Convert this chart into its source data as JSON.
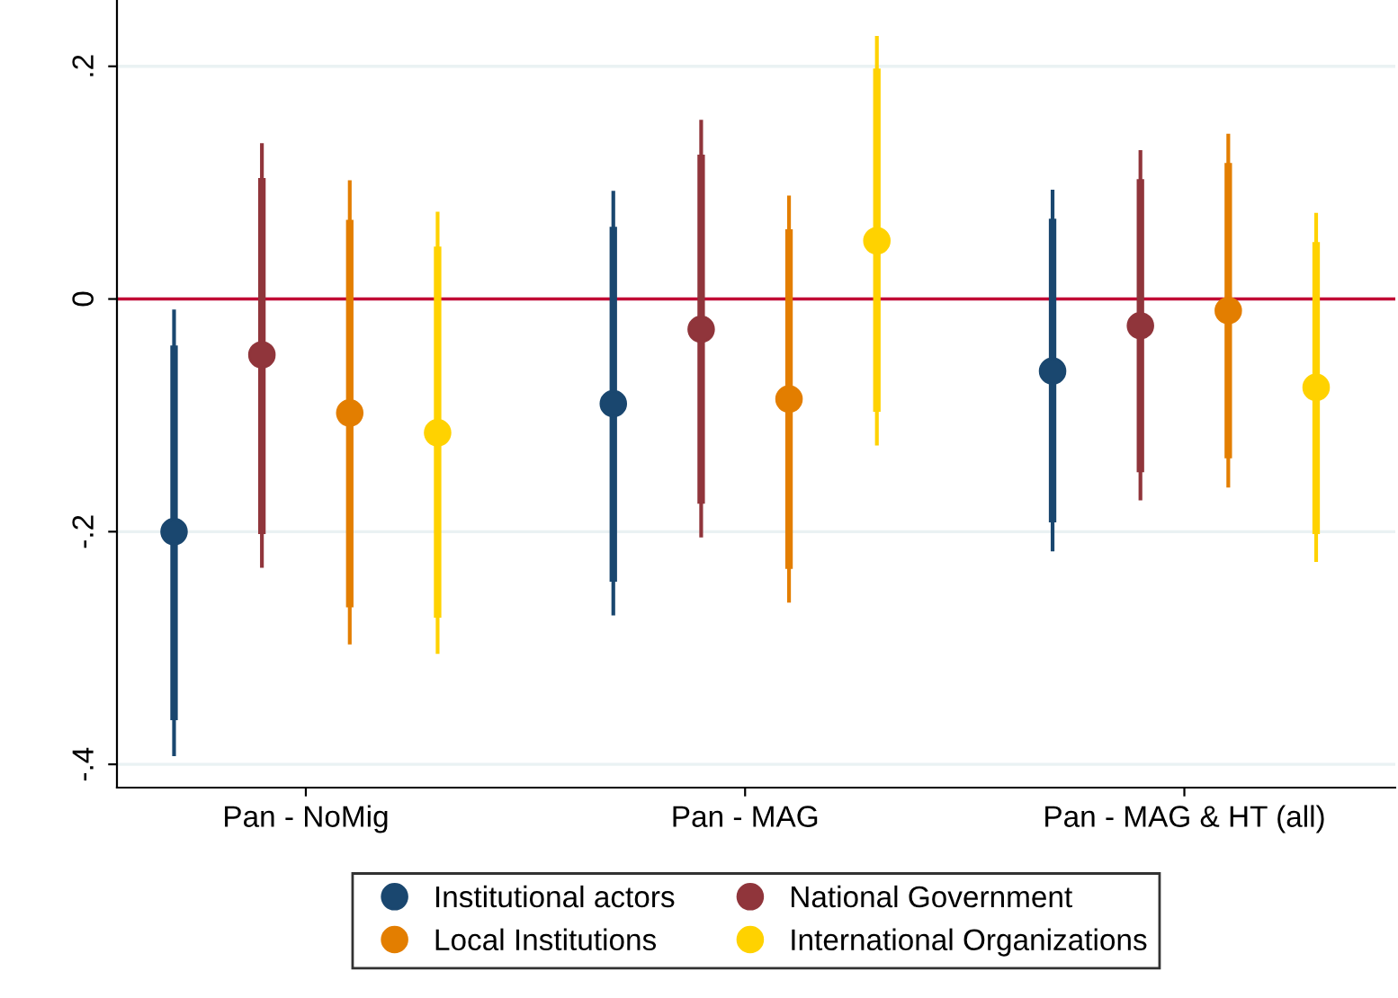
{
  "chart_data": {
    "type": "scatter",
    "categories": [
      "Pan - NoMig",
      "Pan - MAG",
      "Pan - MAG & HT (all)"
    ],
    "ylim": [
      -0.42,
      0.257
    ],
    "yticks": [
      {
        "value": -0.4,
        "label": "-.4"
      },
      {
        "value": -0.2,
        "label": "-.2"
      },
      {
        "value": 0,
        "label": "0"
      },
      {
        "value": 0.2,
        "label": ".2"
      }
    ],
    "grid": "y",
    "marker": "circle",
    "legend": "bottom",
    "ref_lines": [
      {
        "axis": "y",
        "value": 0,
        "color": "#c10534"
      }
    ],
    "series": [
      {
        "name": "Institutional actors",
        "color": "#1a476f",
        "values": [
          -0.2,
          -0.09,
          -0.062
        ],
        "errors": [
          [
            -0.393,
            -0.009
          ],
          [
            -0.272,
            0.093
          ],
          [
            -0.217,
            0.094
          ]
        ]
      },
      {
        "name": "National Government",
        "color": "#90353b",
        "values": [
          -0.048,
          -0.026,
          -0.023
        ],
        "errors": [
          [
            -0.231,
            0.134
          ],
          [
            -0.205,
            0.154
          ],
          [
            -0.173,
            0.128
          ]
        ]
      },
      {
        "name": "Local Institutions",
        "color": "#e37e00",
        "values": [
          -0.098,
          -0.086,
          -0.01
        ],
        "errors": [
          [
            -0.297,
            0.102
          ],
          [
            -0.261,
            0.089
          ],
          [
            -0.162,
            0.142
          ]
        ]
      },
      {
        "name": "International Organizations",
        "color": "#ffd200",
        "values": [
          -0.115,
          0.05,
          -0.076
        ],
        "errors": [
          [
            -0.305,
            0.075
          ],
          [
            -0.126,
            0.226
          ],
          [
            -0.226,
            0.074
          ]
        ]
      },
      {
        "type": "bar",
        "color": "#1a476f",
        "base": [
          -0.362,
          -0.243,
          -0.192
        ],
        "values": [
          0.322,
          0.305,
          0.261
        ]
      },
      {
        "type": "bar",
        "color": "#90353b",
        "base": [
          -0.202,
          -0.176,
          -0.149
        ],
        "values": [
          0.306,
          0.3,
          0.252
        ]
      },
      {
        "type": "bar",
        "color": "#e37e00",
        "base": [
          -0.265,
          -0.232,
          -0.137
        ],
        "values": [
          0.333,
          0.292,
          0.254
        ]
      },
      {
        "type": "bar",
        "color": "#ffd200",
        "base": [
          -0.274,
          -0.097,
          -0.202
        ],
        "values": [
          0.319,
          0.295,
          0.251
        ]
      }
    ]
  }
}
